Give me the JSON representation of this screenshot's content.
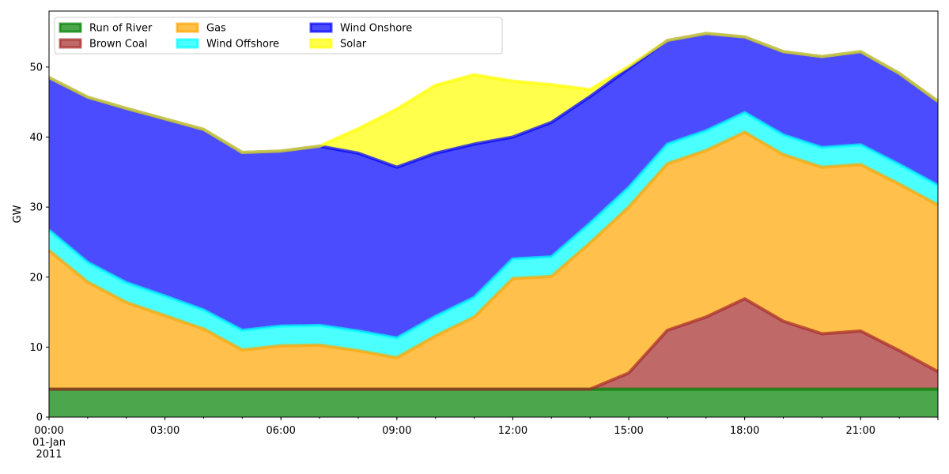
{
  "chart_data": {
    "type": "area",
    "stacked": true,
    "ylabel": "GW",
    "xlabel": "",
    "ylim": [
      0,
      58
    ],
    "yticks": [
      0,
      10,
      20,
      30,
      40,
      50
    ],
    "grid": false,
    "legend_position": "top-left",
    "x": [
      "00:00",
      "01:00",
      "02:00",
      "03:00",
      "04:00",
      "05:00",
      "06:00",
      "07:00",
      "08:00",
      "09:00",
      "10:00",
      "11:00",
      "12:00",
      "13:00",
      "14:00",
      "15:00",
      "16:00",
      "17:00",
      "18:00",
      "19:00",
      "20:00",
      "21:00",
      "22:00",
      "23:00"
    ],
    "x_tick_labels": [
      {
        "index": 0,
        "lines": [
          "00:00",
          "01-Jan",
          "2011"
        ]
      },
      {
        "index": 3,
        "lines": [
          "03:00"
        ]
      },
      {
        "index": 6,
        "lines": [
          "06:00"
        ]
      },
      {
        "index": 9,
        "lines": [
          "09:00"
        ]
      },
      {
        "index": 12,
        "lines": [
          "12:00"
        ]
      },
      {
        "index": 15,
        "lines": [
          "15:00"
        ]
      },
      {
        "index": 18,
        "lines": [
          "18:00"
        ]
      },
      {
        "index": 21,
        "lines": [
          "21:00"
        ]
      }
    ],
    "series": [
      {
        "name": "Run of River",
        "color": "#008000",
        "values": [
          4.0,
          4.0,
          4.0,
          4.0,
          4.0,
          4.0,
          4.0,
          4.0,
          4.0,
          4.0,
          4.0,
          4.0,
          4.0,
          4.0,
          4.0,
          4.0,
          4.0,
          4.0,
          4.0,
          4.0,
          4.0,
          4.0,
          4.0,
          4.0
        ]
      },
      {
        "name": "Brown Coal",
        "color": "#A52A2A",
        "values": [
          0.0,
          0.0,
          0.0,
          0.0,
          0.0,
          0.0,
          0.0,
          0.0,
          0.0,
          0.0,
          0.0,
          0.0,
          0.0,
          0.0,
          0.0,
          2.3,
          8.4,
          10.3,
          12.9,
          9.7,
          7.9,
          8.3,
          5.5,
          2.5
        ]
      },
      {
        "name": "Gas",
        "color": "#FFA500",
        "values": [
          19.8,
          15.3,
          12.4,
          10.5,
          8.6,
          5.6,
          6.2,
          6.3,
          5.5,
          4.5,
          7.6,
          10.3,
          15.8,
          16.1,
          20.9,
          23.7,
          23.8,
          23.8,
          23.8,
          23.8,
          23.8,
          23.8,
          23.8,
          23.8
        ]
      },
      {
        "name": "Wind Offshore",
        "color": "#00FFFF",
        "values": [
          2.9,
          2.8,
          2.8,
          2.8,
          2.7,
          2.8,
          2.8,
          2.8,
          2.8,
          2.8,
          2.8,
          2.8,
          2.8,
          2.8,
          2.8,
          2.8,
          2.8,
          2.8,
          2.8,
          2.8,
          2.8,
          2.8,
          2.8,
          2.8
        ]
      },
      {
        "name": "Wind Onshore",
        "color": "#0000FF",
        "values": [
          21.8,
          23.6,
          24.9,
          25.3,
          25.8,
          25.4,
          25.0,
          25.6,
          25.4,
          24.4,
          23.3,
          21.9,
          17.4,
          19.2,
          18.1,
          17.0,
          14.8,
          13.9,
          10.8,
          11.9,
          13.0,
          13.3,
          13.0,
          12.0
        ]
      },
      {
        "name": "Solar",
        "color": "#FFFF00",
        "values": [
          0,
          0,
          0,
          0,
          0,
          0,
          0,
          0,
          3.5,
          8.3,
          9.7,
          9.9,
          8.0,
          5.4,
          1.0,
          0.3,
          0,
          0,
          0,
          0,
          0,
          0,
          0,
          0
        ]
      }
    ]
  }
}
